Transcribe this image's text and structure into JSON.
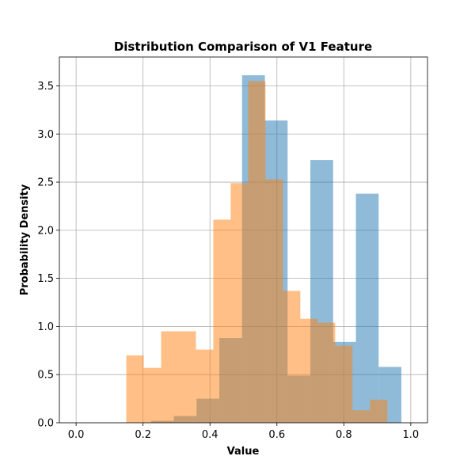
{
  "chart_data": {
    "type": "bar",
    "title": "Distribution Comparison of V1 Feature",
    "xlabel": "Value",
    "ylabel": "Probability Density",
    "xlim": [
      -0.05,
      1.05
    ],
    "ylim": [
      0,
      3.8
    ],
    "xticks": [
      "0.0",
      "0.2",
      "0.4",
      "0.6",
      "0.8",
      "1.0"
    ],
    "xtick_values": [
      0.0,
      0.2,
      0.4,
      0.6,
      0.8,
      1.0
    ],
    "yticks": [
      "0.0",
      "0.5",
      "1.0",
      "1.5",
      "2.0",
      "2.5",
      "3.0",
      "3.5"
    ],
    "ytick_values": [
      0.0,
      0.5,
      1.0,
      1.5,
      2.0,
      2.5,
      3.0,
      3.5
    ],
    "grid": true,
    "legend": "none",
    "series": [
      {
        "color": "#1f77b4",
        "opacity": 0.5,
        "bin_edges": [
          0.02,
          0.088,
          0.156,
          0.224,
          0.292,
          0.36,
          0.428,
          0.496,
          0.564,
          0.632,
          0.7,
          0.768,
          0.836,
          0.904,
          0.972
        ],
        "values": [
          0.0,
          0.0,
          0.0,
          0.02,
          0.07,
          0.25,
          0.88,
          3.61,
          3.14,
          0.49,
          2.73,
          0.84,
          2.38,
          0.58
        ]
      },
      {
        "color": "#ff7f0e",
        "opacity": 0.5,
        "bin_edges": [
          0.15,
          0.202,
          0.254,
          0.306,
          0.358,
          0.41,
          0.462,
          0.514,
          0.566,
          0.618,
          0.67,
          0.722,
          0.774,
          0.826,
          0.878,
          0.93
        ],
        "values": [
          0.7,
          0.57,
          0.95,
          0.95,
          0.76,
          2.11,
          2.49,
          3.55,
          2.53,
          1.37,
          1.08,
          1.04,
          0.8,
          0.13,
          0.24
        ]
      }
    ]
  }
}
